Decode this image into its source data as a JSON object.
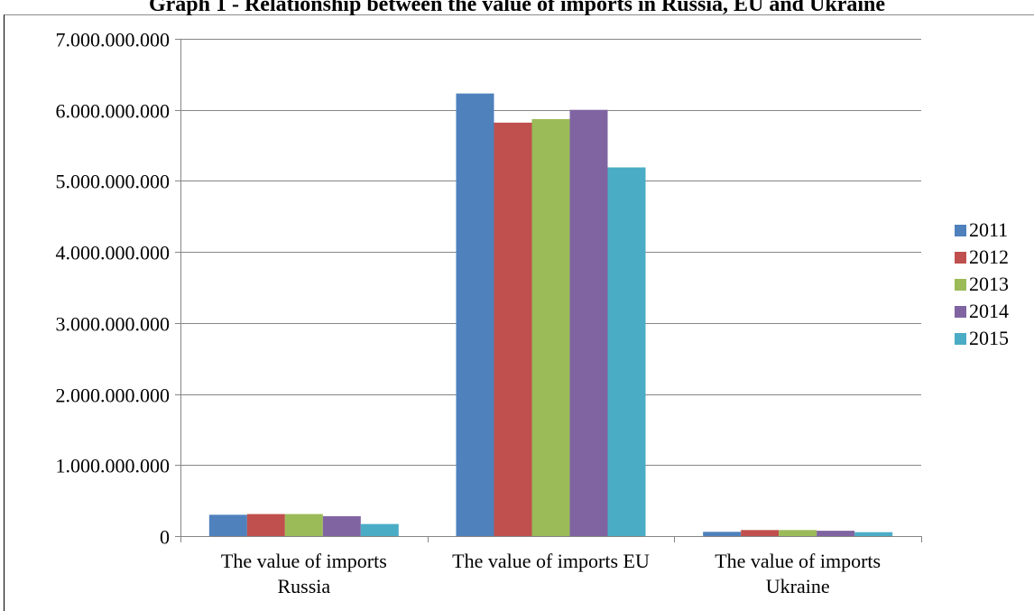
{
  "chart_data": {
    "type": "bar",
    "title": "Graph 1 - Relationship between the value of imports in Russia, EU and Ukraine",
    "xlabel": "",
    "ylabel": "",
    "categories": [
      [
        "The value of imports",
        "Russia"
      ],
      [
        "The value of imports EU"
      ],
      [
        "The value of imports",
        "Ukraine"
      ]
    ],
    "series": [
      {
        "name": "2011",
        "color": "#4F81BD",
        "values": [
          300000000,
          6230000000,
          60000000
        ]
      },
      {
        "name": "2012",
        "color": "#C0504D",
        "values": [
          310000000,
          5820000000,
          85000000
        ]
      },
      {
        "name": "2013",
        "color": "#9BBB59",
        "values": [
          310000000,
          5870000000,
          85000000
        ]
      },
      {
        "name": "2014",
        "color": "#8064A2",
        "values": [
          280000000,
          6000000000,
          75000000
        ]
      },
      {
        "name": "2015",
        "color": "#4BACC6",
        "values": [
          170000000,
          5190000000,
          55000000
        ]
      }
    ],
    "ylim": [
      0,
      7000000000
    ],
    "yticks": [
      "0",
      "1.000.000.000",
      "2.000.000.000",
      "3.000.000.000",
      "4.000.000.000",
      "5.000.000.000",
      "6.000.000.000",
      "7.000.000.000"
    ],
    "grid": true,
    "legend_position": "right"
  }
}
